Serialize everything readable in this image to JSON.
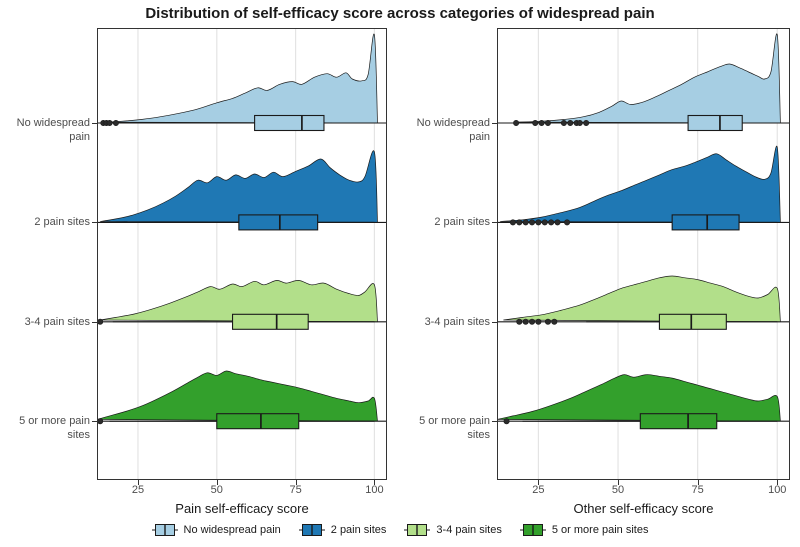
{
  "chart_data": {
    "type": "ridgeline-boxplot",
    "title": "Distribution of self-efficacy score across categories of widespread pain",
    "categories": [
      "No widespread pain",
      "2 pain sites",
      "3-4 pain sites",
      "5 or more pain sites"
    ],
    "colors": [
      "#a6cee3",
      "#1f78b4",
      "#b2df8a",
      "#33a02c"
    ],
    "x_domain": [
      12,
      104
    ],
    "x_ticks": [
      25,
      50,
      75,
      100
    ],
    "legend_items": [
      "No widespread pain",
      "2 pain sites",
      "3-4 pain sites",
      "5 or more pain sites"
    ],
    "panels": [
      {
        "xlabel": "Pain self-efficacy score",
        "series": [
          {
            "category": "No widespread pain",
            "density": [
              [
                14,
                0.01
              ],
              [
                20,
                0.02
              ],
              [
                26,
                0.04
              ],
              [
                32,
                0.07
              ],
              [
                38,
                0.11
              ],
              [
                44,
                0.16
              ],
              [
                50,
                0.23
              ],
              [
                55,
                0.28
              ],
              [
                59,
                0.34
              ],
              [
                63,
                0.4
              ],
              [
                66,
                0.37
              ],
              [
                70,
                0.44
              ],
              [
                74,
                0.47
              ],
              [
                77,
                0.44
              ],
              [
                81,
                0.52
              ],
              [
                85,
                0.56
              ],
              [
                88,
                0.52
              ],
              [
                91,
                0.57
              ],
              [
                93,
                0.5
              ],
              [
                96,
                0.48
              ],
              [
                98,
                0.55
              ],
              [
                100,
                1.0
              ],
              [
                101,
                0.0
              ]
            ],
            "box": {
              "whisker_low": 19,
              "q1": 62,
              "median": 77,
              "q3": 84,
              "whisker_high": 100,
              "outliers": [
                14,
                15,
                16,
                18
              ]
            }
          },
          {
            "category": "2 pain sites",
            "density": [
              [
                13,
                0.01
              ],
              [
                18,
                0.04
              ],
              [
                23,
                0.08
              ],
              [
                28,
                0.14
              ],
              [
                33,
                0.22
              ],
              [
                37,
                0.3
              ],
              [
                41,
                0.4
              ],
              [
                44,
                0.48
              ],
              [
                47,
                0.45
              ],
              [
                50,
                0.52
              ],
              [
                53,
                0.48
              ],
              [
                56,
                0.54
              ],
              [
                59,
                0.5
              ],
              [
                62,
                0.55
              ],
              [
                65,
                0.51
              ],
              [
                68,
                0.57
              ],
              [
                71,
                0.52
              ],
              [
                75,
                0.58
              ],
              [
                79,
                0.64
              ],
              [
                83,
                0.72
              ],
              [
                86,
                0.62
              ],
              [
                89,
                0.54
              ],
              [
                92,
                0.48
              ],
              [
                95,
                0.46
              ],
              [
                97,
                0.52
              ],
              [
                100,
                0.8
              ],
              [
                101,
                0.0
              ]
            ],
            "box": {
              "whisker_low": 18,
              "q1": 57,
              "median": 70,
              "q3": 82,
              "whisker_high": 100,
              "outliers": []
            }
          },
          {
            "category": "3-4 pain sites",
            "density": [
              [
                13,
                0.02
              ],
              [
                18,
                0.05
              ],
              [
                24,
                0.09
              ],
              [
                30,
                0.15
              ],
              [
                35,
                0.21
              ],
              [
                40,
                0.28
              ],
              [
                44,
                0.34
              ],
              [
                48,
                0.4
              ],
              [
                51,
                0.37
              ],
              [
                55,
                0.43
              ],
              [
                58,
                0.4
              ],
              [
                62,
                0.46
              ],
              [
                65,
                0.42
              ],
              [
                69,
                0.47
              ],
              [
                72,
                0.44
              ],
              [
                76,
                0.47
              ],
              [
                80,
                0.42
              ],
              [
                84,
                0.44
              ],
              [
                88,
                0.37
              ],
              [
                92,
                0.32
              ],
              [
                95,
                0.3
              ],
              [
                97,
                0.34
              ],
              [
                100,
                0.42
              ],
              [
                101,
                0.0
              ]
            ],
            "box": {
              "whisker_low": 17,
              "q1": 55,
              "median": 69,
              "q3": 79,
              "whisker_high": 100,
              "outliers": [
                13
              ]
            }
          },
          {
            "category": "5 or more pain sites",
            "density": [
              [
                12,
                0.02
              ],
              [
                16,
                0.06
              ],
              [
                21,
                0.11
              ],
              [
                26,
                0.17
              ],
              [
                31,
                0.25
              ],
              [
                36,
                0.34
              ],
              [
                40,
                0.42
              ],
              [
                44,
                0.5
              ],
              [
                47,
                0.55
              ],
              [
                50,
                0.52
              ],
              [
                53,
                0.57
              ],
              [
                56,
                0.54
              ],
              [
                60,
                0.51
              ],
              [
                64,
                0.47
              ],
              [
                68,
                0.44
              ],
              [
                72,
                0.41
              ],
              [
                76,
                0.38
              ],
              [
                80,
                0.34
              ],
              [
                84,
                0.3
              ],
              [
                88,
                0.26
              ],
              [
                92,
                0.23
              ],
              [
                95,
                0.21
              ],
              [
                98,
                0.23
              ],
              [
                100,
                0.26
              ],
              [
                101,
                0.0
              ]
            ],
            "box": {
              "whisker_low": 16,
              "q1": 50,
              "median": 64,
              "q3": 76,
              "whisker_high": 100,
              "outliers": [
                13
              ]
            }
          }
        ]
      },
      {
        "xlabel": "Other self-efficacy score",
        "series": [
          {
            "category": "No widespread pain",
            "density": [
              [
                18,
                0.01
              ],
              [
                26,
                0.02
              ],
              [
                33,
                0.04
              ],
              [
                39,
                0.07
              ],
              [
                44,
                0.12
              ],
              [
                48,
                0.19
              ],
              [
                51,
                0.25
              ],
              [
                54,
                0.21
              ],
              [
                58,
                0.24
              ],
              [
                62,
                0.3
              ],
              [
                66,
                0.37
              ],
              [
                70,
                0.44
              ],
              [
                74,
                0.52
              ],
              [
                78,
                0.58
              ],
              [
                82,
                0.64
              ],
              [
                85,
                0.67
              ],
              [
                88,
                0.63
              ],
              [
                91,
                0.58
              ],
              [
                94,
                0.53
              ],
              [
                96,
                0.5
              ],
              [
                98,
                0.58
              ],
              [
                100,
                1.0
              ],
              [
                101,
                0.0
              ]
            ],
            "box": {
              "whisker_low": 43,
              "q1": 72,
              "median": 82,
              "q3": 89,
              "whisker_high": 100,
              "outliers": [
                18,
                24,
                26,
                28,
                33,
                35,
                37,
                38,
                40
              ]
            }
          },
          {
            "category": "2 pain sites",
            "density": [
              [
                13,
                0.01
              ],
              [
                20,
                0.03
              ],
              [
                26,
                0.06
              ],
              [
                32,
                0.11
              ],
              [
                38,
                0.17
              ],
              [
                43,
                0.25
              ],
              [
                47,
                0.31
              ],
              [
                51,
                0.36
              ],
              [
                55,
                0.42
              ],
              [
                59,
                0.48
              ],
              [
                63,
                0.54
              ],
              [
                67,
                0.6
              ],
              [
                71,
                0.64
              ],
              [
                74,
                0.68
              ],
              [
                78,
                0.74
              ],
              [
                81,
                0.78
              ],
              [
                84,
                0.71
              ],
              [
                87,
                0.64
              ],
              [
                90,
                0.58
              ],
              [
                93,
                0.52
              ],
              [
                96,
                0.49
              ],
              [
                98,
                0.56
              ],
              [
                100,
                0.85
              ],
              [
                101,
                0.0
              ]
            ],
            "box": {
              "whisker_low": 38,
              "q1": 67,
              "median": 78,
              "q3": 88,
              "whisker_high": 100,
              "outliers": [
                17,
                19,
                21,
                23,
                25,
                27,
                29,
                31,
                34
              ]
            }
          },
          {
            "category": "3-4 pain sites",
            "density": [
              [
                14,
                0.02
              ],
              [
                20,
                0.05
              ],
              [
                26,
                0.08
              ],
              [
                32,
                0.13
              ],
              [
                38,
                0.19
              ],
              [
                43,
                0.26
              ],
              [
                47,
                0.32
              ],
              [
                51,
                0.38
              ],
              [
                55,
                0.42
              ],
              [
                59,
                0.46
              ],
              [
                63,
                0.5
              ],
              [
                67,
                0.52
              ],
              [
                71,
                0.5
              ],
              [
                75,
                0.48
              ],
              [
                79,
                0.44
              ],
              [
                83,
                0.4
              ],
              [
                87,
                0.34
              ],
              [
                91,
                0.29
              ],
              [
                94,
                0.27
              ],
              [
                97,
                0.31
              ],
              [
                100,
                0.38
              ],
              [
                101,
                0.0
              ]
            ],
            "box": {
              "whisker_low": 40,
              "q1": 63,
              "median": 73,
              "q3": 84,
              "whisker_high": 100,
              "outliers": [
                19,
                21,
                23,
                25,
                28,
                30
              ]
            }
          },
          {
            "category": "5 or more pain sites",
            "density": [
              [
                12,
                0.02
              ],
              [
                17,
                0.06
              ],
              [
                23,
                0.11
              ],
              [
                29,
                0.18
              ],
              [
                35,
                0.26
              ],
              [
                40,
                0.34
              ],
              [
                45,
                0.42
              ],
              [
                49,
                0.49
              ],
              [
                52,
                0.53
              ],
              [
                55,
                0.5
              ],
              [
                59,
                0.53
              ],
              [
                63,
                0.51
              ],
              [
                67,
                0.49
              ],
              [
                71,
                0.45
              ],
              [
                75,
                0.41
              ],
              [
                79,
                0.37
              ],
              [
                83,
                0.33
              ],
              [
                87,
                0.29
              ],
              [
                91,
                0.25
              ],
              [
                94,
                0.23
              ],
              [
                97,
                0.25
              ],
              [
                100,
                0.28
              ],
              [
                101,
                0.0
              ]
            ],
            "box": {
              "whisker_low": 20,
              "q1": 57,
              "median": 72,
              "q3": 81,
              "whisker_high": 100,
              "outliers": [
                15
              ]
            }
          }
        ]
      }
    ]
  }
}
